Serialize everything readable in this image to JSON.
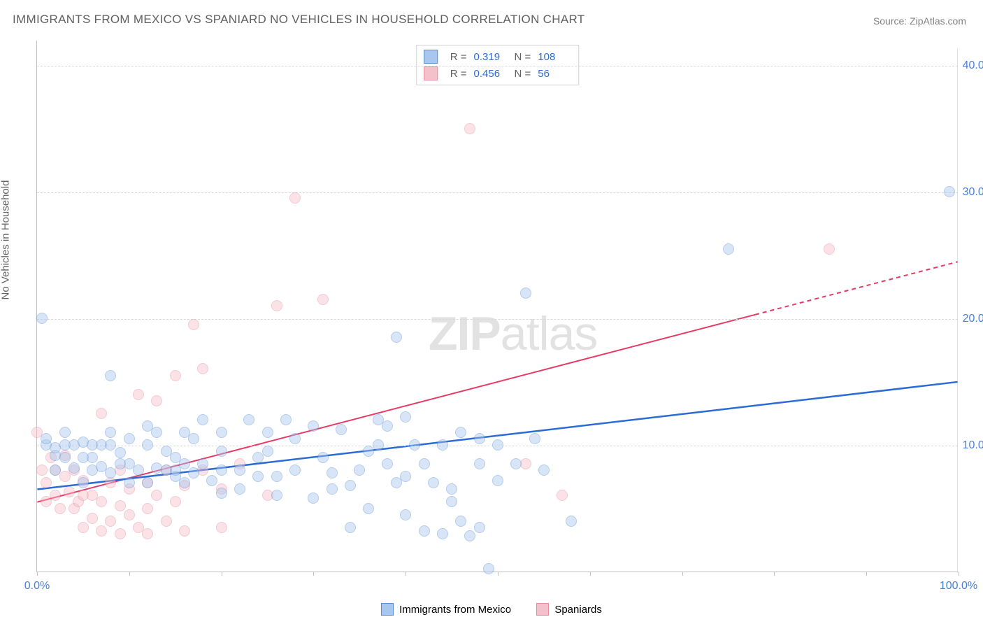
{
  "title": "IMMIGRANTS FROM MEXICO VS SPANIARD NO VEHICLES IN HOUSEHOLD CORRELATION CHART",
  "source": "Source: ZipAtlas.com",
  "watermark": {
    "bold": "ZIP",
    "light": "atlas"
  },
  "y_axis_label": "No Vehicles in Household",
  "chart": {
    "type": "scatter-with-trend",
    "xlim": [
      0,
      100
    ],
    "ylim": [
      0,
      42
    ],
    "x_ticks": [
      0,
      10,
      20,
      30,
      40,
      50,
      60,
      70,
      80,
      90,
      100
    ],
    "x_tick_labels": {
      "0": "0.0%",
      "100": "100.0%"
    },
    "y_gridlines": [
      10,
      20,
      30,
      40
    ],
    "y_tick_labels": {
      "10": "10.0%",
      "20": "20.0%",
      "30": "30.0%",
      "40": "40.0%"
    },
    "background_color": "#ffffff",
    "grid_color": "#d8d8d8",
    "axis_color": "#c0c0c0",
    "tick_label_color": "#4a7fd6",
    "marker_size": 16,
    "marker_opacity": 0.45
  },
  "series": {
    "mexico": {
      "label": "Immigrants from Mexico",
      "fill": "#a9c7ee",
      "stroke": "#5a8fd6",
      "trend_color": "#2b6bd6",
      "trend_width": 2.5,
      "trend": {
        "x1": 0,
        "y1": 6.5,
        "x2": 100,
        "y2": 15.0,
        "dashed_from_x": null
      },
      "R": "0.319",
      "N": "108",
      "points": [
        [
          1,
          10
        ],
        [
          1,
          10.5
        ],
        [
          2,
          8
        ],
        [
          2,
          9.2
        ],
        [
          2,
          9.8
        ],
        [
          0.5,
          20
        ],
        [
          3,
          9
        ],
        [
          3,
          10
        ],
        [
          3,
          11
        ],
        [
          4,
          8.2
        ],
        [
          4,
          10
        ],
        [
          5,
          7
        ],
        [
          5,
          9
        ],
        [
          5,
          10.2
        ],
        [
          6,
          8
        ],
        [
          6,
          9
        ],
        [
          6,
          10
        ],
        [
          7,
          8.3
        ],
        [
          7,
          10
        ],
        [
          8,
          7.8
        ],
        [
          8,
          10
        ],
        [
          8,
          11
        ],
        [
          8,
          15.5
        ],
        [
          9,
          8.5
        ],
        [
          9,
          9.4
        ],
        [
          10,
          7
        ],
        [
          10,
          8.5
        ],
        [
          10,
          10.5
        ],
        [
          11,
          8
        ],
        [
          12,
          7
        ],
        [
          12,
          10
        ],
        [
          12,
          11.5
        ],
        [
          13,
          8.2
        ],
        [
          13,
          11
        ],
        [
          14,
          8
        ],
        [
          14,
          9.5
        ],
        [
          15,
          7.5
        ],
        [
          15,
          8
        ],
        [
          15,
          9
        ],
        [
          16,
          7
        ],
        [
          16,
          8.5
        ],
        [
          16,
          11
        ],
        [
          17,
          7.8
        ],
        [
          17,
          10.5
        ],
        [
          18,
          8.5
        ],
        [
          18,
          12
        ],
        [
          19,
          7.2
        ],
        [
          20,
          6.2
        ],
        [
          20,
          8
        ],
        [
          20,
          9.5
        ],
        [
          20,
          11
        ],
        [
          22,
          6.5
        ],
        [
          22,
          8
        ],
        [
          23,
          12
        ],
        [
          24,
          7.5
        ],
        [
          24,
          9
        ],
        [
          25,
          9.5
        ],
        [
          25,
          11
        ],
        [
          26,
          6
        ],
        [
          26,
          7.5
        ],
        [
          27,
          12
        ],
        [
          28,
          8
        ],
        [
          28,
          10.5
        ],
        [
          30,
          5.8
        ],
        [
          30,
          11.5
        ],
        [
          31,
          9
        ],
        [
          32,
          6.5
        ],
        [
          32,
          7.8
        ],
        [
          33,
          11.2
        ],
        [
          34,
          3.5
        ],
        [
          34,
          6.8
        ],
        [
          35,
          8
        ],
        [
          36,
          5
        ],
        [
          36,
          9.5
        ],
        [
          37,
          10
        ],
        [
          37,
          12
        ],
        [
          38,
          8.5
        ],
        [
          38,
          11.5
        ],
        [
          39,
          7
        ],
        [
          39,
          18.5
        ],
        [
          40,
          4.5
        ],
        [
          40,
          7.5
        ],
        [
          40,
          12.2
        ],
        [
          41,
          10
        ],
        [
          42,
          3.2
        ],
        [
          42,
          8.5
        ],
        [
          43,
          7
        ],
        [
          44,
          3
        ],
        [
          44,
          10
        ],
        [
          45,
          5.5
        ],
        [
          45,
          6.5
        ],
        [
          46,
          4
        ],
        [
          46,
          11
        ],
        [
          47,
          2.8
        ],
        [
          48,
          3.5
        ],
        [
          48,
          8.5
        ],
        [
          48,
          10.5
        ],
        [
          49,
          0.2
        ],
        [
          50,
          7.2
        ],
        [
          50,
          10
        ],
        [
          52,
          8.5
        ],
        [
          53,
          22
        ],
        [
          54,
          10.5
        ],
        [
          55,
          8
        ],
        [
          58,
          4
        ],
        [
          75,
          25.5
        ],
        [
          99,
          30
        ]
      ]
    },
    "spaniards": {
      "label": "Spaniards",
      "fill": "#f4c0ca",
      "stroke": "#e58ca0",
      "trend_color": "#e63963",
      "trend_width": 2,
      "trend": {
        "x1": 0,
        "y1": 5.5,
        "x2": 100,
        "y2": 24.5,
        "dashed_from_x": 78
      },
      "R": "0.456",
      "N": "56",
      "points": [
        [
          0,
          11
        ],
        [
          0.5,
          8
        ],
        [
          1,
          5.5
        ],
        [
          1,
          7
        ],
        [
          1.5,
          9
        ],
        [
          2,
          6
        ],
        [
          2,
          8
        ],
        [
          2.5,
          5
        ],
        [
          3,
          7.5
        ],
        [
          3,
          9.2
        ],
        [
          3.5,
          6.3
        ],
        [
          4,
          5
        ],
        [
          4,
          8
        ],
        [
          4.5,
          5.5
        ],
        [
          5,
          3.5
        ],
        [
          5,
          6
        ],
        [
          5,
          7.2
        ],
        [
          6,
          4.2
        ],
        [
          6,
          6
        ],
        [
          7,
          3.2
        ],
        [
          7,
          5.5
        ],
        [
          7,
          12.5
        ],
        [
          8,
          4
        ],
        [
          8,
          7
        ],
        [
          9,
          3
        ],
        [
          9,
          5.2
        ],
        [
          9,
          8
        ],
        [
          10,
          4.5
        ],
        [
          10,
          6.5
        ],
        [
          11,
          3.5
        ],
        [
          11,
          14
        ],
        [
          12,
          3
        ],
        [
          12,
          5
        ],
        [
          12,
          7
        ],
        [
          13,
          6
        ],
        [
          13,
          13.5
        ],
        [
          14,
          4
        ],
        [
          14,
          8
        ],
        [
          15,
          5.5
        ],
        [
          15,
          15.5
        ],
        [
          16,
          3.2
        ],
        [
          16,
          6.8
        ],
        [
          17,
          19.5
        ],
        [
          18,
          8
        ],
        [
          18,
          16
        ],
        [
          20,
          3.5
        ],
        [
          20,
          6.5
        ],
        [
          22,
          8.5
        ],
        [
          25,
          6
        ],
        [
          26,
          21
        ],
        [
          28,
          29.5
        ],
        [
          31,
          21.5
        ],
        [
          47,
          35
        ],
        [
          53,
          8.5
        ],
        [
          57,
          6
        ],
        [
          86,
          25.5
        ]
      ]
    }
  },
  "footer_legend": [
    {
      "key": "mexico",
      "label": "Immigrants from Mexico"
    },
    {
      "key": "spaniards",
      "label": "Spaniards"
    }
  ]
}
